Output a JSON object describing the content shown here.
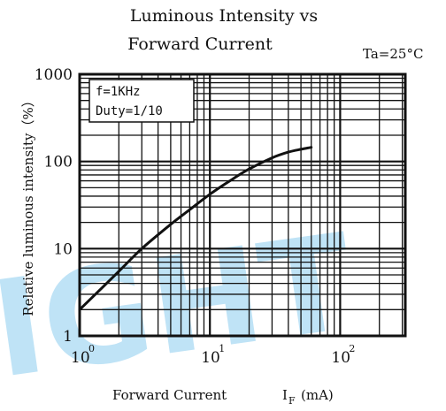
{
  "chart_data": {
    "type": "line",
    "title_line1": "Luminous Intensity vs",
    "title_line2": "Forward Current",
    "condition": "Ta=25°C",
    "xlabel": "Forward Current",
    "xlabel_symbol": "I",
    "xlabel_subscript": "F",
    "xlabel_unit": "(mA)",
    "ylabel": "Relative luminous intensity（%）",
    "x_scale": "log",
    "y_scale": "log",
    "xlim": [
      1,
      100
    ],
    "ylim": [
      1,
      1000
    ],
    "x_ticks": [
      {
        "base": "10",
        "exp": "0"
      },
      {
        "base": "10",
        "exp": "1"
      },
      {
        "base": "10",
        "exp": "2"
      }
    ],
    "y_ticks": [
      "1",
      "10",
      "100",
      "1000"
    ],
    "grid": true,
    "annotation": [
      "f=1KHz",
      "Duty=1/10"
    ],
    "watermark": "IGHT",
    "series": [
      {
        "x": [
          1,
          1.5,
          2,
          3,
          5,
          7,
          10,
          15,
          20,
          30,
          40,
          50,
          60
        ],
        "y": [
          2,
          3.6,
          5.5,
          10,
          19,
          28,
          42,
          63,
          82,
          110,
          128,
          138,
          145
        ],
        "color": "#111111"
      }
    ]
  }
}
